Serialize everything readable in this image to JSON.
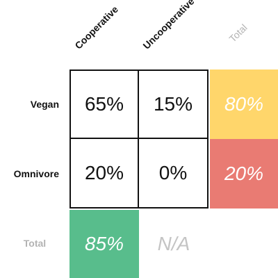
{
  "matrix": {
    "columns": [
      "Cooperative",
      "Uncooperative",
      "Total"
    ],
    "rows": [
      "Vegan",
      "Omnivore",
      "Total"
    ],
    "cells": {
      "vegan_cooperative": "65%",
      "vegan_uncooperative": "15%",
      "omnivore_cooperative": "20%",
      "omnivore_uncooperative": "0%"
    },
    "totals": {
      "vegan": "80%",
      "omnivore": "20%",
      "cooperative": "85%",
      "uncooperative": "N/A"
    }
  },
  "colors": {
    "vegan_total": "#FFD66B",
    "omnivore_total": "#E97B73",
    "cooperative_total": "#58BD8C",
    "border": "#111111",
    "muted_text": "#B3B3B3"
  }
}
